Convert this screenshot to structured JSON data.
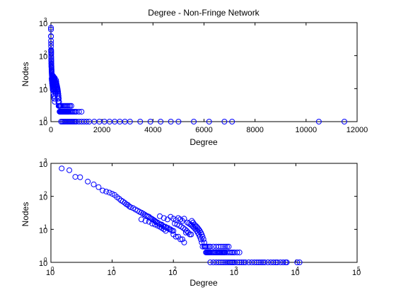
{
  "title": "Degree - Non-Fringe Network",
  "marker_color": "#0000ff",
  "chart_data": [
    {
      "type": "scatter",
      "name": "top-linear-degree",
      "title": "Degree - Non-Fringe Network",
      "xlabel": "Degree",
      "ylabel": "Nodes",
      "xscale": "linear",
      "yscale": "log",
      "xlim": [
        0,
        12000
      ],
      "ylim": [
        1,
        1000
      ],
      "grid": false,
      "x_ticks": [
        0,
        2000,
        4000,
        6000,
        8000,
        10000,
        12000
      ],
      "x_tick_labels": [
        "0",
        "2000",
        "4000",
        "6000",
        "8000",
        "10000",
        "12000"
      ],
      "y_ticks": [
        1,
        10,
        100,
        1000
      ],
      "y_tick_base": "10",
      "y_tick_exponents": [
        "0",
        "1",
        "2",
        "3"
      ],
      "marker": "circle"
    },
    {
      "type": "scatter",
      "name": "bottom-loglog-degree",
      "xlabel": "Degree",
      "ylabel": "Nodes",
      "xscale": "log",
      "yscale": "log",
      "xlim": [
        1,
        100000
      ],
      "ylim": [
        1,
        1000
      ],
      "grid": false,
      "x_ticks": [
        1,
        10,
        100,
        1000,
        10000,
        100000
      ],
      "x_tick_base": "10",
      "x_tick_exponents": [
        "0",
        "1",
        "2",
        "3",
        "4",
        "5"
      ],
      "y_ticks": [
        1,
        10,
        100,
        1000
      ],
      "y_tick_base": "10",
      "y_tick_exponents": [
        "0",
        "1",
        "2",
        "3"
      ],
      "marker": "circle"
    }
  ],
  "points": [
    [
      1.5,
      700
    ],
    [
      2,
      620
    ],
    [
      2.5,
      390
    ],
    [
      3,
      380
    ],
    [
      4,
      280
    ],
    [
      5,
      230
    ],
    [
      6,
      190
    ],
    [
      7,
      150
    ],
    [
      8,
      140
    ],
    [
      9,
      130
    ],
    [
      10,
      120
    ],
    [
      11,
      110
    ],
    [
      12,
      95
    ],
    [
      13,
      85
    ],
    [
      14,
      75
    ],
    [
      15,
      70
    ],
    [
      16,
      64
    ],
    [
      17,
      58
    ],
    [
      18,
      55
    ],
    [
      19,
      50
    ],
    [
      20,
      47
    ],
    [
      22,
      44
    ],
    [
      24,
      40
    ],
    [
      26,
      37
    ],
    [
      28,
      34
    ],
    [
      30,
      32
    ],
    [
      32,
      30
    ],
    [
      34,
      28
    ],
    [
      36,
      26
    ],
    [
      38,
      25
    ],
    [
      40,
      24
    ],
    [
      42,
      22
    ],
    [
      44,
      21
    ],
    [
      46,
      20
    ],
    [
      48,
      19
    ],
    [
      50,
      18
    ],
    [
      52,
      17
    ],
    [
      55,
      16
    ],
    [
      58,
      15
    ],
    [
      61,
      14
    ],
    [
      64,
      14
    ],
    [
      67,
      13
    ],
    [
      70,
      12
    ],
    [
      74,
      12
    ],
    [
      78,
      11
    ],
    [
      82,
      11
    ],
    [
      86,
      10
    ],
    [
      90,
      10
    ],
    [
      95,
      9
    ],
    [
      100,
      9
    ],
    [
      30,
      20
    ],
    [
      35,
      18
    ],
    [
      40,
      17
    ],
    [
      45,
      15
    ],
    [
      50,
      14
    ],
    [
      55,
      13
    ],
    [
      60,
      12
    ],
    [
      65,
      11
    ],
    [
      70,
      10
    ],
    [
      75,
      9
    ],
    [
      60,
      25
    ],
    [
      70,
      22
    ],
    [
      80,
      20
    ],
    [
      90,
      24
    ],
    [
      100,
      21
    ],
    [
      110,
      19
    ],
    [
      120,
      22
    ],
    [
      130,
      20
    ],
    [
      140,
      18
    ],
    [
      150,
      21
    ],
    [
      105,
      15
    ],
    [
      115,
      14
    ],
    [
      125,
      13
    ],
    [
      135,
      12
    ],
    [
      145,
      11
    ],
    [
      155,
      10
    ],
    [
      165,
      9
    ],
    [
      175,
      8
    ],
    [
      185,
      7
    ],
    [
      195,
      7
    ],
    [
      100,
      7
    ],
    [
      110,
      6
    ],
    [
      120,
      6
    ],
    [
      130,
      5
    ],
    [
      140,
      5
    ],
    [
      150,
      4
    ],
    [
      160,
      8
    ],
    [
      170,
      16
    ],
    [
      180,
      15
    ],
    [
      190,
      14
    ],
    [
      200,
      13
    ],
    [
      210,
      12
    ],
    [
      220,
      11
    ],
    [
      230,
      10
    ],
    [
      240,
      9
    ],
    [
      250,
      8
    ],
    [
      260,
      7
    ],
    [
      270,
      6
    ],
    [
      280,
      5
    ],
    [
      290,
      4
    ],
    [
      200,
      18
    ],
    [
      210,
      16
    ],
    [
      220,
      14
    ],
    [
      230,
      13
    ],
    [
      240,
      12
    ],
    [
      250,
      11
    ],
    [
      260,
      10
    ],
    [
      270,
      9
    ],
    [
      280,
      8
    ],
    [
      290,
      7
    ],
    [
      300,
      6
    ],
    [
      310,
      5
    ],
    [
      320,
      4
    ],
    [
      330,
      3
    ],
    [
      340,
      3
    ],
    [
      350,
      2
    ],
    [
      360,
      2
    ],
    [
      370,
      2
    ],
    [
      380,
      2
    ],
    [
      390,
      2
    ],
    [
      300,
      3
    ],
    [
      320,
      3
    ],
    [
      340,
      2
    ],
    [
      360,
      3
    ],
    [
      380,
      3
    ],
    [
      400,
      2
    ],
    [
      420,
      2
    ],
    [
      440,
      2
    ],
    [
      460,
      2
    ],
    [
      480,
      2
    ],
    [
      500,
      2
    ],
    [
      520,
      2
    ],
    [
      540,
      2
    ],
    [
      560,
      2
    ],
    [
      580,
      2
    ],
    [
      600,
      2
    ],
    [
      620,
      2
    ],
    [
      640,
      2
    ],
    [
      660,
      2
    ],
    [
      680,
      2
    ],
    [
      700,
      2
    ],
    [
      750,
      2
    ],
    [
      800,
      2
    ],
    [
      850,
      2
    ],
    [
      900,
      2
    ],
    [
      950,
      2
    ],
    [
      1000,
      2
    ],
    [
      1100,
      2
    ],
    [
      1200,
      2
    ],
    [
      400,
      3
    ],
    [
      450,
      3
    ],
    [
      500,
      3
    ],
    [
      550,
      3
    ],
    [
      600,
      3
    ],
    [
      650,
      3
    ],
    [
      700,
      3
    ],
    [
      750,
      3
    ],
    [
      800,
      3
    ],
    [
      400,
      1
    ],
    [
      450,
      1
    ],
    [
      500,
      1
    ],
    [
      550,
      1
    ],
    [
      600,
      1
    ],
    [
      650,
      1
    ],
    [
      700,
      1
    ],
    [
      750,
      1
    ],
    [
      800,
      1
    ],
    [
      850,
      1
    ],
    [
      900,
      1
    ],
    [
      950,
      1
    ],
    [
      1000,
      1
    ],
    [
      1100,
      1
    ],
    [
      1200,
      1
    ],
    [
      1300,
      1
    ],
    [
      1400,
      1
    ],
    [
      1500,
      1
    ],
    [
      1700,
      1
    ],
    [
      1900,
      1
    ],
    [
      2100,
      1
    ],
    [
      2300,
      1
    ],
    [
      2500,
      1
    ],
    [
      2700,
      1
    ],
    [
      2900,
      1
    ],
    [
      3100,
      1
    ],
    [
      3500,
      1
    ],
    [
      3900,
      1
    ],
    [
      4300,
      1
    ],
    [
      4700,
      1
    ],
    [
      5000,
      1
    ],
    [
      5600,
      1
    ],
    [
      6200,
      1
    ],
    [
      6800,
      1
    ],
    [
      7100,
      1
    ],
    [
      10500,
      1
    ],
    [
      11500,
      1
    ]
  ]
}
